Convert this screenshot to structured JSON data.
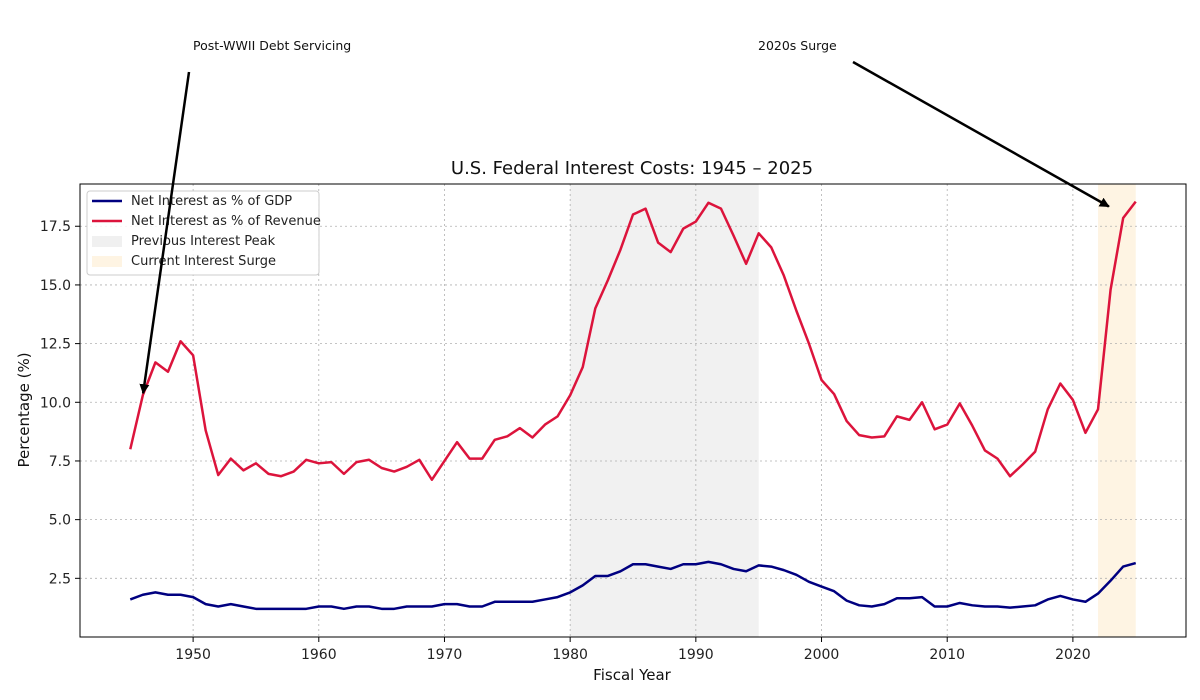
{
  "chart_data": {
    "type": "line",
    "title": "U.S. Federal Interest Costs: 1945 – 2025",
    "xlabel": "Fiscal Year",
    "ylabel": "Percentage (%)",
    "xlim": [
      1941.0,
      2029.0
    ],
    "ylim": [
      0.0,
      19.3
    ],
    "xticks": [
      1950,
      1960,
      1970,
      1980,
      1990,
      2000,
      2010,
      2020
    ],
    "yticks": [
      2.5,
      5.0,
      7.5,
      10.0,
      12.5,
      15.0,
      17.5
    ],
    "grid": true,
    "x": [
      1945,
      1946,
      1947,
      1948,
      1949,
      1950,
      1951,
      1952,
      1953,
      1954,
      1955,
      1956,
      1957,
      1958,
      1959,
      1960,
      1961,
      1962,
      1963,
      1964,
      1965,
      1966,
      1967,
      1968,
      1969,
      1970,
      1971,
      1972,
      1973,
      1974,
      1975,
      1976,
      1977,
      1978,
      1979,
      1980,
      1981,
      1982,
      1983,
      1984,
      1985,
      1986,
      1987,
      1988,
      1989,
      1990,
      1991,
      1992,
      1993,
      1994,
      1995,
      1996,
      1997,
      1998,
      1999,
      2000,
      2001,
      2002,
      2003,
      2004,
      2005,
      2006,
      2007,
      2008,
      2009,
      2010,
      2011,
      2012,
      2013,
      2014,
      2015,
      2016,
      2017,
      2018,
      2019,
      2020,
      2021,
      2022,
      2023,
      2024,
      2025
    ],
    "series": [
      {
        "name": "Net Interest as % of GDP",
        "color": "#000080",
        "values": [
          1.6,
          1.8,
          1.9,
          1.8,
          1.8,
          1.7,
          1.4,
          1.3,
          1.4,
          1.3,
          1.2,
          1.2,
          1.2,
          1.2,
          1.2,
          1.3,
          1.3,
          1.2,
          1.3,
          1.3,
          1.2,
          1.2,
          1.3,
          1.3,
          1.3,
          1.4,
          1.4,
          1.3,
          1.3,
          1.5,
          1.5,
          1.5,
          1.5,
          1.6,
          1.7,
          1.9,
          2.2,
          2.6,
          2.6,
          2.8,
          3.1,
          3.1,
          3.0,
          2.9,
          3.1,
          3.1,
          3.2,
          3.1,
          2.9,
          2.8,
          3.05,
          3.0,
          2.85,
          2.65,
          2.35,
          2.15,
          1.95,
          1.55,
          1.35,
          1.3,
          1.4,
          1.65,
          1.65,
          1.7,
          1.3,
          1.3,
          1.45,
          1.35,
          1.3,
          1.3,
          1.25,
          1.3,
          1.35,
          1.6,
          1.75,
          1.6,
          1.5,
          1.85,
          2.4,
          3.0,
          3.15
        ]
      },
      {
        "name": "Net Interest as % of Revenue",
        "color": "#dc143c",
        "values": [
          8.0,
          10.3,
          11.7,
          11.3,
          12.6,
          12.0,
          8.8,
          6.9,
          7.6,
          7.1,
          7.4,
          6.95,
          6.85,
          7.05,
          7.55,
          7.4,
          7.45,
          6.95,
          7.45,
          7.55,
          7.2,
          7.05,
          7.25,
          7.55,
          6.7,
          7.5,
          8.3,
          7.6,
          7.6,
          8.4,
          8.55,
          8.9,
          8.5,
          9.05,
          9.4,
          10.3,
          11.5,
          14.0,
          15.2,
          16.5,
          18.0,
          18.25,
          16.8,
          16.4,
          17.4,
          17.7,
          18.5,
          18.25,
          17.1,
          15.9,
          17.2,
          16.6,
          15.4,
          13.9,
          12.5,
          10.95,
          10.35,
          9.2,
          8.6,
          8.5,
          8.55,
          9.4,
          9.25,
          10.0,
          8.85,
          9.05,
          9.95,
          9.0,
          7.95,
          7.6,
          6.85,
          7.35,
          7.9,
          9.7,
          10.8,
          10.1,
          8.7,
          9.7,
          14.8,
          17.85,
          18.55
        ]
      }
    ],
    "shaded_regions": [
      {
        "label": "Previous Interest Peak",
        "x_start": 1980,
        "x_end": 1995,
        "color": "#d3d3d3"
      },
      {
        "label": "Current Interest Surge",
        "x_start": 2022,
        "x_end": 2025,
        "color": "#fde4b8"
      }
    ],
    "annotations": [
      {
        "text": "Post-WWII Debt Servicing",
        "target_x": 1946,
        "target_y": 10.3
      },
      {
        "text": "2020s Surge",
        "target_x": 2023,
        "target_y": 18.3
      }
    ],
    "legend_placement": "top-left"
  }
}
